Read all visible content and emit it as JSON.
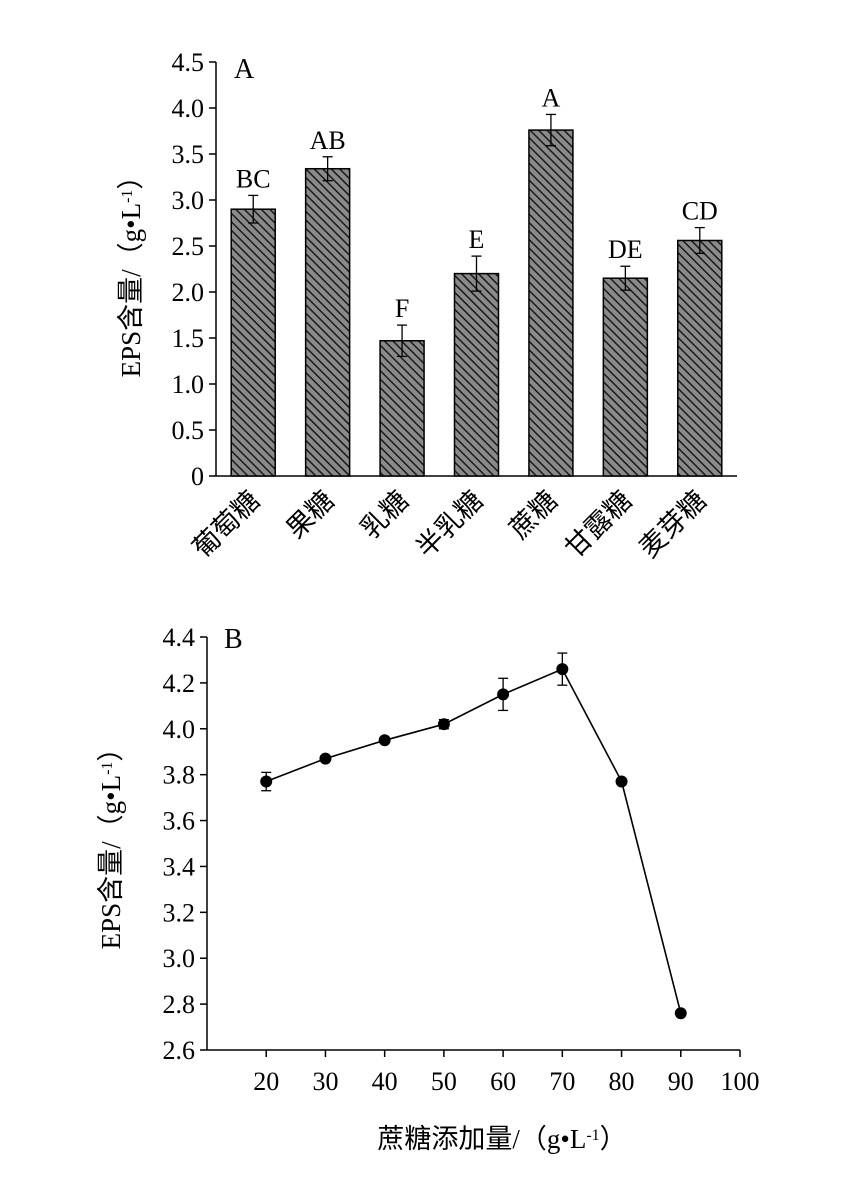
{
  "chart_data": [
    {
      "type": "bar",
      "panel_label": "A",
      "categories": [
        "葡萄糖",
        "果糖",
        "乳糖",
        "半乳糖",
        "蔗糖",
        "甘露糖",
        "麦芽糖"
      ],
      "values": [
        2.9,
        3.34,
        1.47,
        2.2,
        3.76,
        2.15,
        2.56
      ],
      "errors": [
        0.15,
        0.13,
        0.17,
        0.19,
        0.17,
        0.13,
        0.14
      ],
      "significance": [
        "BC",
        "AB",
        "F",
        "E",
        "A",
        "DE",
        "CD"
      ],
      "ylabel": "EPS含量/（g•L",
      "ylabel_sup": "-1",
      "ylabel_close": "）",
      "ylim": [
        0,
        4.5
      ],
      "yticks": [
        0,
        0.5,
        1.0,
        1.5,
        2.0,
        2.5,
        3.0,
        3.5,
        4.0,
        4.5
      ],
      "ytick_labels": [
        "0",
        "0.5",
        "1.0",
        "1.5",
        "2.0",
        "2.5",
        "3.0",
        "3.5",
        "4.0",
        "4.5"
      ],
      "fill": "hatched dark gray",
      "grid": false
    },
    {
      "type": "line",
      "panel_label": "B",
      "x": [
        20,
        30,
        40,
        50,
        60,
        70,
        80,
        90
      ],
      "y": [
        3.77,
        3.87,
        3.95,
        4.02,
        4.15,
        4.26,
        3.77,
        2.76
      ],
      "errors": [
        0.04,
        0.01,
        0.01,
        0.02,
        0.07,
        0.07,
        0.0,
        0.0
      ],
      "xlabel": "蔗糖添加量/（g•L",
      "xlabel_sup": "-1",
      "xlabel_close": "）",
      "ylabel": "EPS含量/（g•L",
      "ylabel_sup": "-1",
      "ylabel_close": "）",
      "xlim": [
        10,
        100
      ],
      "xticks": [
        20,
        30,
        40,
        50,
        60,
        70,
        80,
        90,
        100
      ],
      "xtick_labels": [
        "20",
        "30",
        "40",
        "50",
        "60",
        "70",
        "80",
        "90",
        "100"
      ],
      "ylim": [
        2.6,
        4.4
      ],
      "yticks": [
        2.6,
        2.8,
        3.0,
        3.2,
        3.4,
        3.6,
        3.8,
        4.0,
        4.2,
        4.4
      ],
      "ytick_labels": [
        "2.6",
        "2.8",
        "3.0",
        "3.2",
        "3.4",
        "3.6",
        "3.8",
        "4.0",
        "4.2",
        "4.4"
      ],
      "marker": "filled circle",
      "grid": false
    }
  ],
  "colors": {
    "bar_fill": "#8a8a8a",
    "hatch": "#1a1a1a",
    "axis": "#000000"
  }
}
